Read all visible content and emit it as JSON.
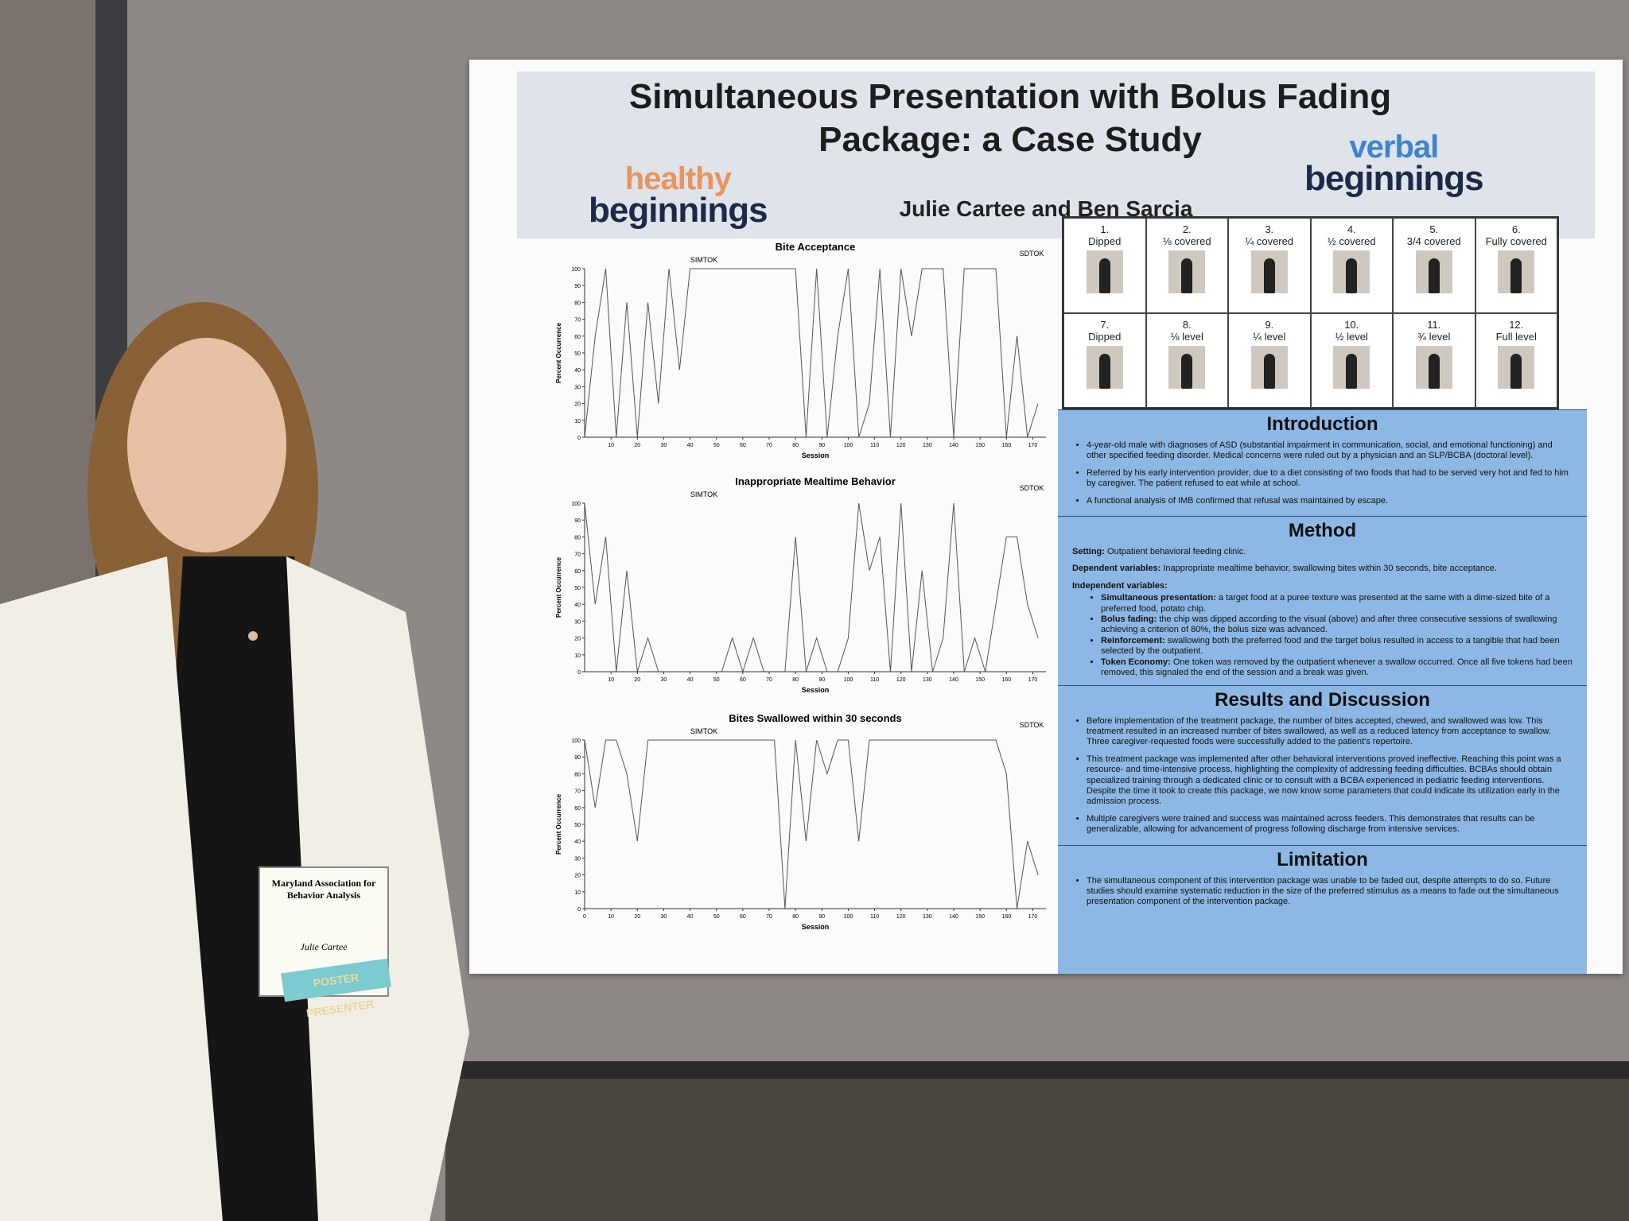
{
  "poster": {
    "title": "Simultaneous Presentation with Bolus Fading Package: a Case Study",
    "authors": "Julie Cartee and Ben Sarcia",
    "logo_left": {
      "top": "healthy",
      "bottom": "beginnings"
    },
    "logo_right": {
      "top": "verbal",
      "bottom": "beginnings"
    }
  },
  "chart_data": [
    {
      "type": "line",
      "title": "Bite Acceptance",
      "phase_labels": [
        "SIMTOK",
        "SDTOK"
      ],
      "xlabel": "Session",
      "ylabel": "Percent Occurrence",
      "xlim": [
        0,
        175
      ],
      "ylim": [
        0,
        100
      ],
      "xticks": [
        10,
        20,
        30,
        40,
        50,
        60,
        70,
        80,
        90,
        100,
        110,
        120,
        130,
        140,
        150,
        160,
        170
      ],
      "yticks": [
        0,
        10,
        20,
        30,
        40,
        50,
        60,
        70,
        80,
        90,
        100
      ],
      "x": [
        0,
        4,
        8,
        12,
        16,
        20,
        24,
        28,
        32,
        36,
        40,
        44,
        48,
        52,
        56,
        60,
        64,
        68,
        72,
        76,
        80,
        84,
        88,
        92,
        96,
        100,
        104,
        108,
        112,
        116,
        120,
        124,
        128,
        132,
        136,
        140,
        144,
        148,
        152,
        156,
        160,
        164,
        168,
        172
      ],
      "series": [
        {
          "name": "Bite Acceptance",
          "color": "#555555",
          "values": [
            0,
            60,
            100,
            0,
            80,
            0,
            80,
            20,
            100,
            40,
            100,
            100,
            100,
            100,
            100,
            100,
            100,
            100,
            100,
            100,
            100,
            0,
            100,
            0,
            60,
            100,
            0,
            20,
            100,
            0,
            100,
            60,
            100,
            100,
            100,
            0,
            100,
            100,
            100,
            100,
            0,
            60,
            0,
            20
          ]
        }
      ]
    },
    {
      "type": "line",
      "title": "Inappropriate Mealtime Behavior",
      "phase_labels": [
        "SIMTOK",
        "SDTOK"
      ],
      "xlabel": "Session",
      "ylabel": "Percent Occurrence",
      "xlim": [
        0,
        175
      ],
      "ylim": [
        0,
        100
      ],
      "xticks": [
        10,
        20,
        30,
        40,
        50,
        60,
        70,
        80,
        90,
        100,
        110,
        120,
        130,
        140,
        150,
        160,
        170
      ],
      "yticks": [
        0,
        10,
        20,
        30,
        40,
        50,
        60,
        70,
        80,
        90,
        100
      ],
      "x": [
        0,
        4,
        8,
        12,
        16,
        20,
        24,
        28,
        32,
        36,
        40,
        44,
        48,
        52,
        56,
        60,
        64,
        68,
        72,
        76,
        80,
        84,
        88,
        92,
        96,
        100,
        104,
        108,
        112,
        116,
        120,
        124,
        128,
        132,
        136,
        140,
        144,
        148,
        152,
        156,
        160,
        164,
        168,
        172
      ],
      "series": [
        {
          "name": "Inappropriate Mealtime Behavior",
          "color": "#555555",
          "values": [
            100,
            40,
            80,
            0,
            60,
            0,
            20,
            0,
            0,
            0,
            0,
            0,
            0,
            0,
            20,
            0,
            20,
            0,
            0,
            0,
            80,
            0,
            20,
            0,
            0,
            20,
            100,
            60,
            80,
            0,
            100,
            0,
            60,
            0,
            20,
            100,
            0,
            20,
            0,
            40,
            80,
            80,
            40,
            20
          ]
        }
      ]
    },
    {
      "type": "line",
      "title": "Bites Swallowed within 30 seconds",
      "phase_labels": [
        "SIMTOK",
        "SDTOK"
      ],
      "xlabel": "Session",
      "ylabel": "Percent Occurrence",
      "xlim": [
        0,
        175
      ],
      "ylim": [
        0,
        100
      ],
      "xticks": [
        0,
        10,
        20,
        30,
        40,
        50,
        60,
        70,
        80,
        90,
        100,
        110,
        120,
        130,
        140,
        150,
        160,
        170
      ],
      "yticks": [
        0,
        10,
        20,
        30,
        40,
        50,
        60,
        70,
        80,
        90,
        100
      ],
      "x": [
        0,
        4,
        8,
        12,
        16,
        20,
        24,
        28,
        32,
        36,
        40,
        44,
        48,
        52,
        56,
        60,
        64,
        68,
        72,
        76,
        80,
        84,
        88,
        92,
        96,
        100,
        104,
        108,
        112,
        116,
        120,
        124,
        128,
        132,
        136,
        140,
        144,
        148,
        152,
        156,
        160,
        164,
        168,
        172
      ],
      "series": [
        {
          "name": "Bites Swallowed within 30 seconds",
          "color": "#555555",
          "values": [
            100,
            60,
            100,
            100,
            80,
            40,
            100,
            100,
            100,
            100,
            100,
            100,
            100,
            100,
            100,
            100,
            100,
            100,
            100,
            0,
            100,
            40,
            100,
            80,
            100,
            100,
            40,
            100,
            100,
            100,
            100,
            100,
            100,
            100,
            100,
            100,
            100,
            100,
            100,
            100,
            80,
            0,
            40,
            20
          ]
        }
      ]
    }
  ],
  "stimuli": [
    {
      "number": "1.",
      "label": "Dipped"
    },
    {
      "number": "2.",
      "label": "⅛ covered"
    },
    {
      "number": "3.",
      "label": "¼ covered"
    },
    {
      "number": "4.",
      "label": "½ covered"
    },
    {
      "number": "5.",
      "label": "3/4 covered"
    },
    {
      "number": "6.",
      "label": "Fully covered"
    },
    {
      "number": "7.",
      "label": "Dipped"
    },
    {
      "number": "8.",
      "label": "⅛ level"
    },
    {
      "number": "9.",
      "label": "¼ level"
    },
    {
      "number": "10.",
      "label": "½ level"
    },
    {
      "number": "11.",
      "label": "¾ level"
    },
    {
      "number": "12.",
      "label": "Full level"
    }
  ],
  "sections": [
    {
      "heading": "Introduction",
      "items": [
        "4-year-old male with diagnoses of ASD (substantial impairment in communication, social, and emotional functioning) and other specified feeding disorder. Medical concerns were ruled out by a physician and an SLP/BCBA (doctoral level).",
        "Referred by his early intervention provider, due to a diet consisting of two foods that had to be served very hot and fed to him by caregiver. The patient refused to eat while at school.",
        "A functional analysis of IMB confirmed that refusal was maintained by escape."
      ]
    },
    {
      "heading": "Method",
      "paragraphs": [
        {
          "label": "Setting:",
          "text": "Outpatient behavioral feeding clinic."
        },
        {
          "label": "Dependent variables:",
          "text": "Inappropriate mealtime behavior, swallowing bites within 30 seconds, bite acceptance."
        },
        {
          "label": "Independent variables:",
          "items": [
            {
              "label": "Simultaneous presentation:",
              "text": "a target food at a puree texture was presented at the same with a dime-sized bite of a preferred food, potato chip."
            },
            {
              "label": "Bolus fading:",
              "text": "the chip was dipped according to the visual (above) and after three consecutive sessions of swallowing achieving a criterion of 80%, the bolus size was advanced."
            },
            {
              "label": "Reinforcement:",
              "text": "swallowing both the preferred food and the target bolus resulted in access to a tangible that had been selected by the outpatient."
            },
            {
              "label": "Token Economy:",
              "text": "One token was removed by the outpatient whenever a swallow occurred. Once all five tokens had been removed, this signaled the end of the session and a break was given."
            }
          ]
        }
      ]
    },
    {
      "heading": "Results and Discussion",
      "items": [
        "Before implementation of the treatment package, the number of bites accepted, chewed, and swallowed was low. This treatment resulted in an increased number of bites swallowed, as well as a reduced latency from acceptance to swallow. Three caregiver-requested foods were successfully added to the patient's repertoire.",
        "This treatment package was implemented after other behavioral interventions proved ineffective. Reaching this point was a resource- and time-intensive process, highlighting the complexity of addressing feeding difficulties. BCBAs should obtain specialized training through a dedicated clinic or to consult with a BCBA experienced in pediatric feeding interventions. Despite the time it took to create this package, we now know some parameters that could indicate its utilization early in the admission process.",
        "Multiple caregivers were trained and success was maintained across feeders. This demonstrates that results can be generalizable, allowing for advancement of progress following discharge from intensive services."
      ]
    },
    {
      "heading": "Limitation",
      "items": [
        "The simultaneous component of this intervention package was unable to be faded out, despite attempts to do so. Future studies should examine systematic reduction in the size of the preferred stimulus as a means to fade out the simultaneous presentation component of the intervention package."
      ]
    }
  ],
  "badge": {
    "org": "Maryland Association for Behavior Analysis",
    "name": "Julie Cartee",
    "ribbon": "POSTER PRESENTER"
  }
}
